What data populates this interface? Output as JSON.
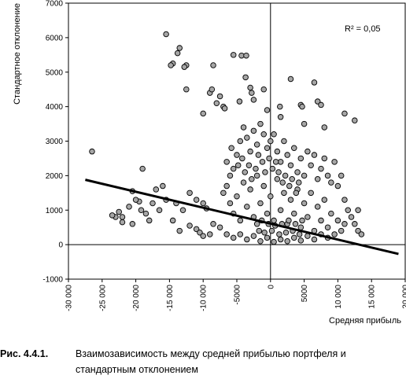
{
  "chart_data": {
    "type": "scatter",
    "xlabel": "Средняя прибыль",
    "ylabel": "Стандартное отклонение",
    "xlim": [
      -30000,
      20000
    ],
    "ylim": [
      -1000,
      7000
    ],
    "x_ticks": [
      "-30 000",
      "-25 000",
      "-20 000",
      "-15 000",
      "-10 000",
      "-5000",
      "0",
      "5000",
      "10 000",
      "15 000",
      "20 000"
    ],
    "y_ticks": [
      "-1000",
      "0",
      "1000",
      "2000",
      "3000",
      "4000",
      "5000",
      "6000",
      "7000"
    ],
    "annotation": "R² = 0,05",
    "trendline": {
      "x": [
        -27500,
        19000
      ],
      "y": [
        1880,
        -270
      ]
    },
    "points_note": "approximate reading; dense cloud of many overlapping points",
    "points": [
      [
        -15500,
        6100
      ],
      [
        -13500,
        5700
      ],
      [
        -13800,
        5550
      ],
      [
        -14500,
        5250
      ],
      [
        -14800,
        5200
      ],
      [
        -12500,
        5200
      ],
      [
        -12800,
        5150
      ],
      [
        -8500,
        5200
      ],
      [
        -5500,
        5500
      ],
      [
        -4300,
        5480
      ],
      [
        -3600,
        5480
      ],
      [
        -3700,
        4850
      ],
      [
        -3000,
        4550
      ],
      [
        -2800,
        4400
      ],
      [
        -2500,
        4200
      ],
      [
        -7500,
        4300
      ],
      [
        -8000,
        4100
      ],
      [
        -9000,
        4400
      ],
      [
        -8700,
        4500
      ],
      [
        -7000,
        4000
      ],
      [
        -6800,
        3950
      ],
      [
        -4600,
        4150
      ],
      [
        -1000,
        4500
      ],
      [
        -500,
        3900
      ],
      [
        3000,
        4800
      ],
      [
        6500,
        4700
      ],
      [
        4500,
        4050
      ],
      [
        4700,
        4000
      ],
      [
        7000,
        4150
      ],
      [
        7500,
        4050
      ],
      [
        1500,
        3700
      ],
      [
        1400,
        4000
      ],
      [
        12500,
        3600
      ],
      [
        11000,
        3800
      ],
      [
        5000,
        3500
      ],
      [
        8000,
        3400
      ],
      [
        -10000,
        3800
      ],
      [
        -12500,
        4500
      ],
      [
        -26500,
        2700
      ],
      [
        -19000,
        2200
      ],
      [
        -20500,
        1550
      ],
      [
        -19500,
        1250
      ],
      [
        -19200,
        1000
      ],
      [
        -18500,
        900
      ],
      [
        -21000,
        1100
      ],
      [
        -22000,
        800
      ],
      [
        -22500,
        950
      ],
      [
        -23000,
        800
      ],
      [
        -23500,
        850
      ],
      [
        -22000,
        650
      ],
      [
        -20000,
        1300
      ],
      [
        -17500,
        1200
      ],
      [
        -16500,
        1000
      ],
      [
        -15500,
        1300
      ],
      [
        -14000,
        1200
      ],
      [
        -13000,
        1000
      ],
      [
        -12000,
        1500
      ],
      [
        -11000,
        1300
      ],
      [
        -10000,
        1200
      ],
      [
        -9500,
        1050
      ],
      [
        -17000,
        1600
      ],
      [
        -16000,
        1700
      ],
      [
        -18000,
        700
      ],
      [
        -20500,
        600
      ],
      [
        -14500,
        700
      ],
      [
        -13500,
        400
      ],
      [
        -12000,
        550
      ],
      [
        -11000,
        450
      ],
      [
        -10500,
        350
      ],
      [
        -10000,
        250
      ],
      [
        -9000,
        300
      ],
      [
        -8500,
        600
      ],
      [
        -7500,
        500
      ],
      [
        -7000,
        1500
      ],
      [
        -6500,
        1700
      ],
      [
        -6000,
        2000
      ],
      [
        -6500,
        2400
      ],
      [
        -5800,
        2800
      ],
      [
        -5500,
        2200
      ],
      [
        -5000,
        2600
      ],
      [
        -4500,
        3000
      ],
      [
        -4000,
        3400
      ],
      [
        -3500,
        3100
      ],
      [
        -3000,
        2700
      ],
      [
        -2500,
        3300
      ],
      [
        -2000,
        2900
      ],
      [
        -1500,
        3500
      ],
      [
        -1000,
        3200
      ],
      [
        -500,
        2800
      ],
      [
        0,
        3000
      ],
      [
        500,
        3200
      ],
      [
        1000,
        2700
      ],
      [
        1500,
        2400
      ],
      [
        2000,
        3000
      ],
      [
        2500,
        2600
      ],
      [
        3000,
        2300
      ],
      [
        3500,
        2800
      ],
      [
        4000,
        2100
      ],
      [
        4500,
        2500
      ],
      [
        5000,
        2000
      ],
      [
        5500,
        2700
      ],
      [
        6000,
        2300
      ],
      [
        6500,
        2600
      ],
      [
        7000,
        1900
      ],
      [
        7500,
        2200
      ],
      [
        8000,
        2500
      ],
      [
        8500,
        2000
      ],
      [
        9000,
        1800
      ],
      [
        9500,
        2400
      ],
      [
        10000,
        1700
      ],
      [
        10500,
        2000
      ],
      [
        11000,
        1300
      ],
      [
        11500,
        1000
      ],
      [
        12000,
        800
      ],
      [
        12500,
        600
      ],
      [
        13000,
        400
      ],
      [
        13500,
        300
      ],
      [
        13000,
        1000
      ],
      [
        -6000,
        1200
      ],
      [
        -5500,
        900
      ],
      [
        -5000,
        1400
      ],
      [
        -4500,
        700
      ],
      [
        -4000,
        1800
      ],
      [
        -3500,
        1100
      ],
      [
        -3000,
        1600
      ],
      [
        -2500,
        800
      ],
      [
        -2000,
        2000
      ],
      [
        -1500,
        1200
      ],
      [
        -1000,
        1700
      ],
      [
        -500,
        900
      ],
      [
        0,
        1400
      ],
      [
        500,
        700
      ],
      [
        1000,
        1900
      ],
      [
        1500,
        1000
      ],
      [
        2000,
        1500
      ],
      [
        2500,
        600
      ],
      [
        3000,
        1300
      ],
      [
        3500,
        900
      ],
      [
        4000,
        1600
      ],
      [
        4500,
        500
      ],
      [
        5000,
        1200
      ],
      [
        5500,
        800
      ],
      [
        6000,
        1500
      ],
      [
        6500,
        400
      ],
      [
        7000,
        1100
      ],
      [
        7500,
        700
      ],
      [
        8000,
        1300
      ],
      [
        8500,
        500
      ],
      [
        9000,
        900
      ],
      [
        9500,
        300
      ],
      [
        10000,
        700
      ],
      [
        10500,
        400
      ],
      [
        11000,
        600
      ],
      [
        -6500,
        300
      ],
      [
        -5500,
        200
      ],
      [
        -4500,
        300
      ],
      [
        -3500,
        150
      ],
      [
        -2500,
        250
      ],
      [
        -1500,
        100
      ],
      [
        -500,
        200
      ],
      [
        500,
        80
      ],
      [
        1500,
        150
      ],
      [
        2500,
        100
      ],
      [
        3500,
        200
      ],
      [
        4500,
        120
      ],
      [
        5500,
        250
      ],
      [
        6500,
        150
      ],
      [
        7500,
        300
      ],
      [
        8500,
        200
      ],
      [
        -4800,
        2300
      ],
      [
        -4200,
        2500
      ],
      [
        -3800,
        2100
      ],
      [
        -3200,
        2300
      ],
      [
        -2800,
        1900
      ],
      [
        -2200,
        2200
      ],
      [
        -1800,
        2600
      ],
      [
        -1200,
        2400
      ],
      [
        -800,
        2100
      ],
      [
        -200,
        2500
      ],
      [
        300,
        2200
      ],
      [
        800,
        2400
      ],
      [
        1200,
        2100
      ],
      [
        1800,
        1800
      ],
      [
        2200,
        2000
      ],
      [
        2800,
        1700
      ],
      [
        3200,
        1900
      ],
      [
        3800,
        1500
      ],
      [
        4200,
        1800
      ],
      [
        -2000,
        600
      ],
      [
        -1700,
        400
      ],
      [
        -1300,
        700
      ],
      [
        -900,
        350
      ],
      [
        -300,
        600
      ],
      [
        200,
        400
      ],
      [
        700,
        550
      ],
      [
        1300,
        300
      ],
      [
        1700,
        600
      ],
      [
        2300,
        350
      ],
      [
        2700,
        700
      ],
      [
        3300,
        400
      ],
      [
        3700,
        600
      ],
      [
        4300,
        300
      ],
      [
        4700,
        700
      ]
    ]
  },
  "caption": {
    "label": "Рис. 4.4.1.",
    "text": "Взаимозависимость между средней прибылью портфеля и стандартным отклонением"
  }
}
